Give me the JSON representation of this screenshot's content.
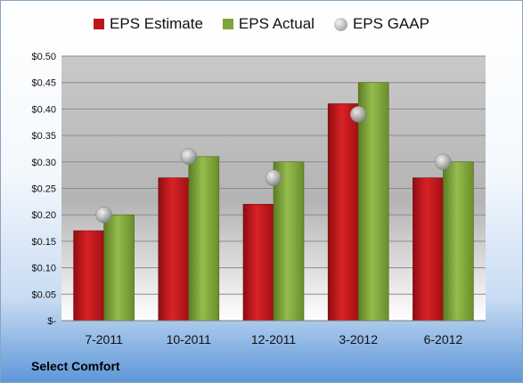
{
  "chart_data": {
    "type": "bar",
    "categories": [
      "7-2011",
      "10-2011",
      "12-2011",
      "3-2012",
      "6-2012"
    ],
    "series": [
      {
        "name": "EPS Estimate",
        "kind": "bar",
        "color": "#c0161b",
        "values": [
          0.17,
          0.27,
          0.22,
          0.41,
          0.27
        ]
      },
      {
        "name": "EPS Actual",
        "kind": "bar",
        "color": "#7ea43a",
        "values": [
          0.2,
          0.31,
          0.3,
          0.45,
          0.3
        ]
      },
      {
        "name": "EPS GAAP",
        "kind": "marker",
        "color": "#b0b0b0",
        "values": [
          0.2,
          0.31,
          0.27,
          0.39,
          0.3
        ]
      }
    ],
    "ylim": [
      0,
      0.5
    ],
    "yticks": [
      0,
      0.05,
      0.1,
      0.15,
      0.2,
      0.25,
      0.3,
      0.35,
      0.4,
      0.45,
      0.5
    ],
    "ytick_labels": [
      "$-",
      "$0.05",
      "$0.10",
      "$0.15",
      "$0.20",
      "$0.25",
      "$0.30",
      "$0.35",
      "$0.40",
      "$0.45",
      "$0.50"
    ],
    "grid": true,
    "legend_position": "top"
  },
  "caption": "Select Comfort"
}
